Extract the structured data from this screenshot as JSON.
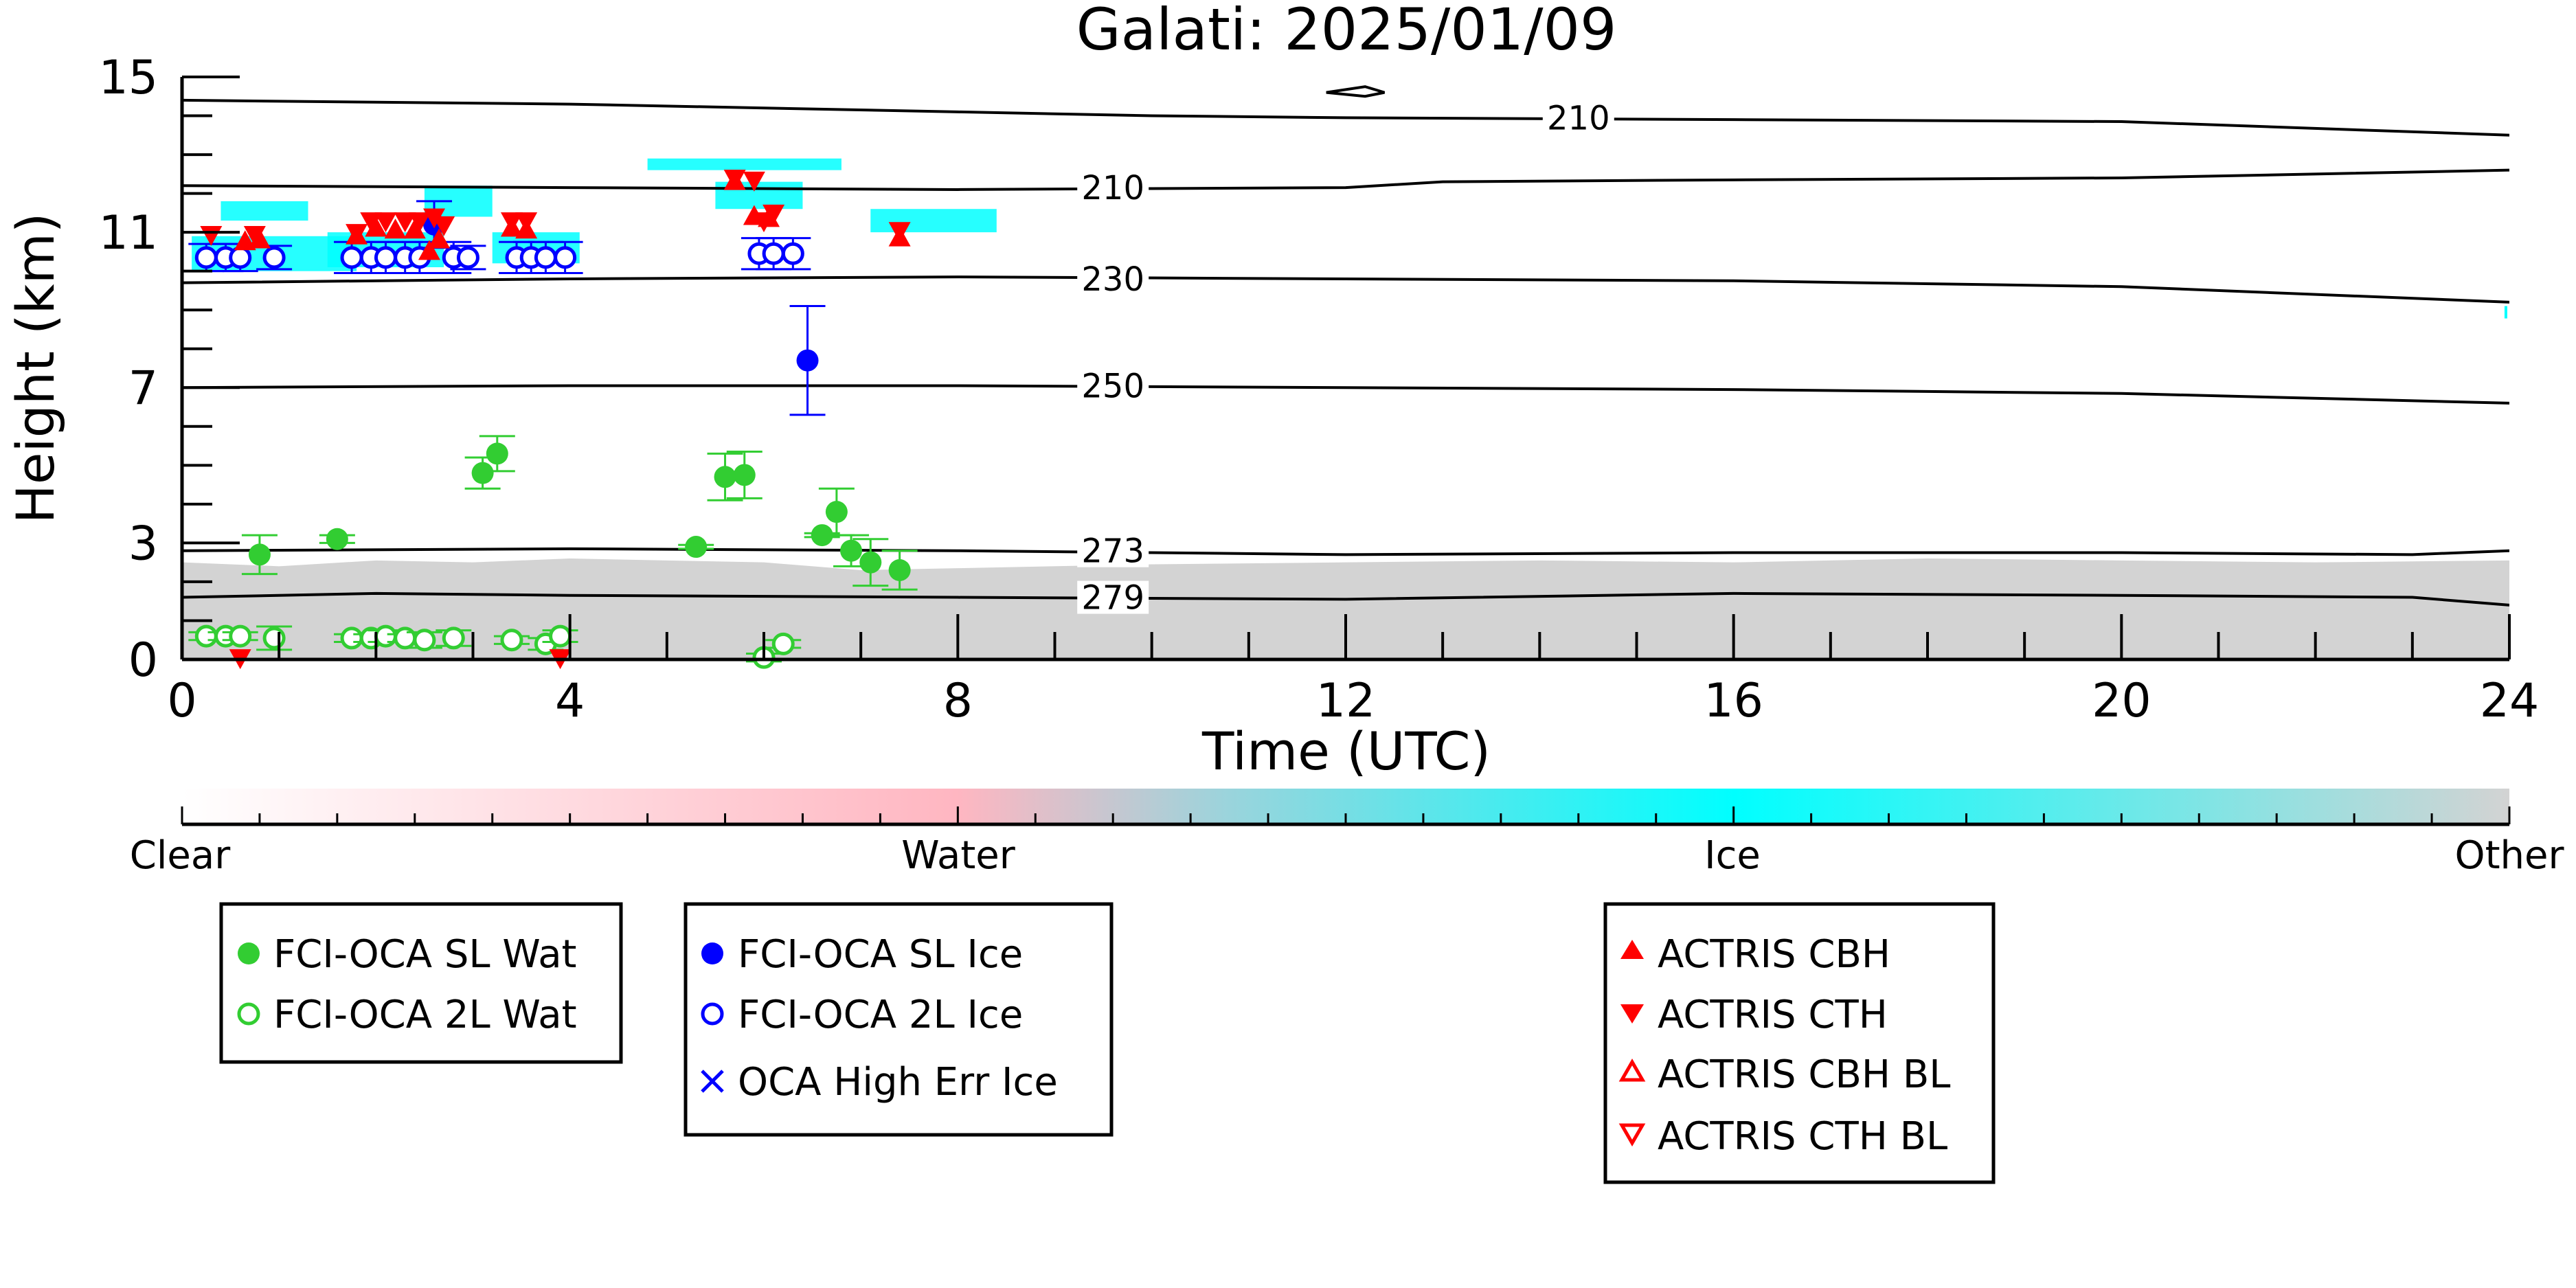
{
  "chart_data": {
    "type": "scatter",
    "title": "Galati: 2025/01/09",
    "xlabel": "Time (UTC)",
    "ylabel": "Height (km)",
    "xlim": [
      0,
      24
    ],
    "ylim": [
      0,
      15
    ],
    "x_ticks": [
      "0",
      "4",
      "8",
      "12",
      "16",
      "20",
      "24"
    ],
    "y_ticks": [
      "0",
      "3",
      "7",
      "11",
      "15"
    ],
    "colorbar": {
      "labels": [
        "Clear",
        "Water",
        "Ice",
        "Other"
      ],
      "colors": [
        "#ffffff",
        "#ffb6c1",
        "#00ffff",
        "#d3d3d3"
      ]
    },
    "contours": [
      {
        "label": "210",
        "points": [
          [
            0,
            14.4
          ],
          [
            4,
            14.3
          ],
          [
            8,
            14.1
          ],
          [
            10,
            14.0
          ],
          [
            12,
            13.95
          ],
          [
            16,
            13.9
          ],
          [
            20,
            13.85
          ],
          [
            24,
            13.5
          ]
        ]
      },
      {
        "label": "210",
        "points": [
          [
            0,
            12.2
          ],
          [
            4,
            12.15
          ],
          [
            8,
            12.1
          ],
          [
            12,
            12.15
          ],
          [
            13,
            12.3
          ],
          [
            16,
            12.35
          ],
          [
            20,
            12.4
          ],
          [
            24,
            12.6
          ]
        ]
      },
      {
        "label": "230",
        "points": [
          [
            0,
            9.7
          ],
          [
            4,
            9.8
          ],
          [
            8,
            9.85
          ],
          [
            12,
            9.8
          ],
          [
            16,
            9.75
          ],
          [
            20,
            9.6
          ],
          [
            24,
            9.2
          ]
        ]
      },
      {
        "label": "250",
        "points": [
          [
            0,
            7.0
          ],
          [
            4,
            7.05
          ],
          [
            8,
            7.05
          ],
          [
            12,
            7.0
          ],
          [
            16,
            6.95
          ],
          [
            20,
            6.85
          ],
          [
            24,
            6.6
          ]
        ]
      },
      {
        "label": "273",
        "points": [
          [
            0,
            2.8
          ],
          [
            4,
            2.85
          ],
          [
            8,
            2.8
          ],
          [
            10,
            2.75
          ],
          [
            12,
            2.7
          ],
          [
            16,
            2.75
          ],
          [
            20,
            2.75
          ],
          [
            23,
            2.7
          ],
          [
            24,
            2.8
          ]
        ]
      },
      {
        "label": "279",
        "points": [
          [
            0,
            1.6
          ],
          [
            2,
            1.7
          ],
          [
            4,
            1.65
          ],
          [
            8,
            1.6
          ],
          [
            12,
            1.55
          ],
          [
            16,
            1.7
          ],
          [
            20,
            1.65
          ],
          [
            23,
            1.6
          ],
          [
            24,
            1.4
          ]
        ]
      }
    ],
    "contour_label_positions": [
      [
        14.4,
        13.95
      ],
      [
        9.6,
        12.15
      ],
      [
        9.6,
        9.8
      ],
      [
        9.6,
        7.05
      ],
      [
        9.6,
        2.8
      ],
      [
        9.6,
        1.6
      ]
    ],
    "series": [
      {
        "name": "FCI-OCA SL Wat",
        "marker": "filled-circle",
        "color": "#32cd32",
        "points": [
          [
            0.8,
            2.7,
            0.5
          ],
          [
            1.6,
            3.1,
            0.1
          ],
          [
            3.1,
            4.8,
            0.4
          ],
          [
            3.25,
            5.3,
            0.45
          ],
          [
            5.3,
            2.9,
            0.05
          ],
          [
            5.6,
            4.7,
            0.6
          ],
          [
            5.8,
            4.75,
            0.6
          ],
          [
            6.6,
            3.2,
            0.05
          ],
          [
            6.75,
            3.8,
            0.6
          ],
          [
            6.9,
            2.8,
            0.4
          ],
          [
            7.1,
            2.5,
            0.6
          ],
          [
            7.4,
            2.3,
            0.5
          ]
        ]
      },
      {
        "name": "FCI-OCA 2L Wat",
        "marker": "open-circle",
        "color": "#32cd32",
        "points": [
          [
            0.25,
            0.6,
            0.1
          ],
          [
            0.45,
            0.6,
            0.1
          ],
          [
            0.6,
            0.6,
            0.1
          ],
          [
            0.95,
            0.55,
            0.3
          ],
          [
            1.75,
            0.55,
            0.1
          ],
          [
            1.95,
            0.55,
            0.1
          ],
          [
            2.1,
            0.6,
            0.15
          ],
          [
            2.3,
            0.55,
            0.1
          ],
          [
            2.5,
            0.5,
            0.2
          ],
          [
            2.8,
            0.55,
            0.2
          ],
          [
            3.4,
            0.5,
            0.1
          ],
          [
            3.75,
            0.4,
            0.15
          ],
          [
            3.9,
            0.6,
            0.15
          ],
          [
            6.0,
            0.05,
            0.1
          ],
          [
            6.2,
            0.4,
            0.1
          ]
        ]
      },
      {
        "name": "FCI-OCA SL Ice",
        "marker": "filled-circle",
        "color": "#0000ff",
        "points": [
          [
            2.6,
            11.2,
            0.6
          ],
          [
            6.45,
            7.7,
            1.4
          ]
        ]
      },
      {
        "name": "FCI-OCA 2L Ice",
        "marker": "open-circle",
        "color": "#0000ff",
        "points": [
          [
            0.25,
            10.35,
            0.35
          ],
          [
            0.45,
            10.35,
            0.35
          ],
          [
            0.6,
            10.35,
            0.35
          ],
          [
            0.95,
            10.35,
            0.3
          ],
          [
            1.75,
            10.35,
            0.4
          ],
          [
            1.95,
            10.35,
            0.4
          ],
          [
            2.1,
            10.35,
            0.4
          ],
          [
            2.3,
            10.35,
            0.4
          ],
          [
            2.45,
            10.35,
            0.4
          ],
          [
            2.8,
            10.35,
            0.4
          ],
          [
            2.95,
            10.35,
            0.3
          ],
          [
            3.45,
            10.35,
            0.4
          ],
          [
            3.6,
            10.35,
            0.4
          ],
          [
            3.75,
            10.35,
            0.4
          ],
          [
            3.95,
            10.35,
            0.4
          ],
          [
            5.95,
            10.45,
            0.4
          ],
          [
            6.1,
            10.45,
            0.4
          ],
          [
            6.3,
            10.45,
            0.4
          ]
        ]
      },
      {
        "name": "OCA High Err Ice",
        "marker": "x",
        "color": "#0000ff",
        "points": []
      },
      {
        "name": "ACTRIS CBH",
        "marker": "filled-triangle-up",
        "color": "#ff0000",
        "points": [
          [
            0.65,
            10.75
          ],
          [
            0.8,
            10.8
          ],
          [
            1.8,
            10.9
          ],
          [
            2.0,
            11.1
          ],
          [
            2.2,
            11.05
          ],
          [
            2.4,
            11.05
          ],
          [
            2.55,
            10.5
          ],
          [
            2.65,
            10.8
          ],
          [
            3.4,
            11.1
          ],
          [
            3.55,
            11.05
          ],
          [
            5.7,
            12.3
          ],
          [
            5.9,
            11.4
          ],
          [
            6.05,
            11.35
          ],
          [
            7.4,
            10.85
          ]
        ]
      },
      {
        "name": "ACTRIS CTH",
        "marker": "filled-triangle-down",
        "color": "#ff0000",
        "points": [
          [
            0.3,
            10.95
          ],
          [
            0.75,
            10.95
          ],
          [
            1.8,
            11.0
          ],
          [
            1.95,
            11.3
          ],
          [
            2.1,
            11.3
          ],
          [
            2.3,
            11.3
          ],
          [
            2.45,
            11.3
          ],
          [
            2.6,
            11.4
          ],
          [
            2.7,
            11.2
          ],
          [
            3.4,
            11.3
          ],
          [
            3.55,
            11.3
          ],
          [
            5.7,
            12.4
          ],
          [
            5.9,
            12.35
          ],
          [
            6.0,
            11.3
          ],
          [
            6.1,
            11.5
          ],
          [
            7.4,
            11.05
          ],
          [
            0.6,
            0.05
          ],
          [
            3.9,
            0.05
          ]
        ]
      },
      {
        "name": "ACTRIS CBH BL",
        "marker": "open-triangle-up",
        "color": "#ff0000",
        "points": []
      },
      {
        "name": "ACTRIS CTH BL",
        "marker": "open-triangle-down",
        "color": "#ff0000",
        "points": []
      }
    ],
    "legend_groups": [
      [
        "FCI-OCA SL Wat",
        "FCI-OCA 2L Wat"
      ],
      [
        "FCI-OCA SL Ice",
        "FCI-OCA 2L Ice",
        "OCA High Err Ice"
      ],
      [
        "ACTRIS CBH",
        "ACTRIS CTH",
        "ACTRIS CBH BL",
        "ACTRIS CTH BL"
      ]
    ],
    "grid": false
  }
}
